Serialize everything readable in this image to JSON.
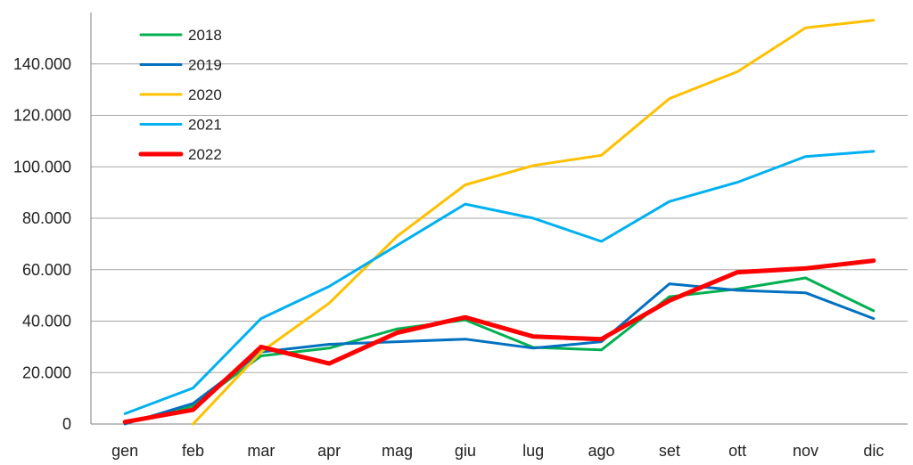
{
  "chart_data": {
    "type": "line",
    "title": "",
    "xlabel": "",
    "ylabel": "",
    "categories": [
      "gen",
      "feb",
      "mar",
      "apr",
      "mag",
      "giu",
      "lug",
      "ago",
      "set",
      "ott",
      "nov",
      "dic"
    ],
    "ylim": [
      0,
      160000
    ],
    "yticks": [
      0,
      20000,
      40000,
      60000,
      80000,
      100000,
      120000,
      140000
    ],
    "ytick_labels": [
      "0",
      "20.000",
      "40.000",
      "60.000",
      "80.000",
      "100.000",
      "120.000",
      "140.000"
    ],
    "grid": "horizontal",
    "legend_position": "top-left",
    "series": [
      {
        "name": "2018",
        "color": "#00b050",
        "line_width": "normal",
        "values": [
          300,
          7000,
          26500,
          29500,
          37000,
          40500,
          29800,
          28800,
          49500,
          52500,
          56800,
          44000
        ]
      },
      {
        "name": "2019",
        "color": "#0070c0",
        "line_width": "normal",
        "values": [
          0,
          8000,
          28000,
          31000,
          32000,
          33000,
          29500,
          32000,
          54500,
          52000,
          51000,
          41000
        ]
      },
      {
        "name": "2020",
        "color": "#ffc000",
        "line_width": "normal",
        "values": [
          null,
          0,
          28000,
          47000,
          73000,
          93000,
          100500,
          104500,
          126500,
          137000,
          154000,
          157000
        ]
      },
      {
        "name": "2021",
        "color": "#00b0f0",
        "line_width": "normal",
        "values": [
          4000,
          14000,
          41000,
          53500,
          69500,
          85500,
          80000,
          71000,
          86500,
          94000,
          104000,
          106000
        ]
      },
      {
        "name": "2022",
        "color": "#ff0000",
        "line_width": "thick",
        "values": [
          800,
          5500,
          30000,
          23500,
          35500,
          41500,
          34000,
          33000,
          48000,
          59000,
          60500,
          63500
        ]
      }
    ]
  }
}
